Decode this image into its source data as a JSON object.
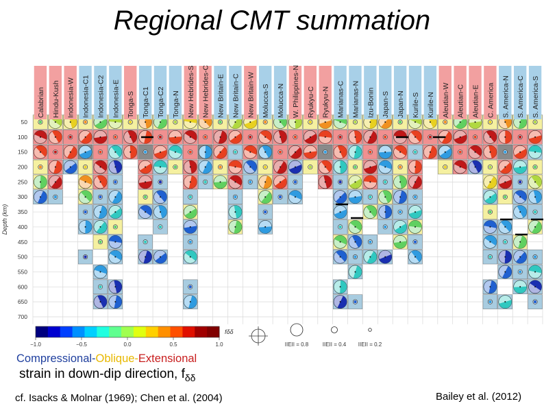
{
  "title": "Regional CMT summation",
  "chart_data": {
    "type": "table",
    "regions": [
      {
        "name": "Calabrian",
        "color": "#f2a0a0"
      },
      {
        "name": "Hindu-Kush",
        "color": "#f2a0a0"
      },
      {
        "name": "Indonesia-W",
        "color": "#f2a0a0"
      },
      {
        "name": "Indonesia-C1",
        "color": "#a8d0e8"
      },
      {
        "name": "Indonesia-C2",
        "color": "#a8d0e8"
      },
      {
        "name": "Indonesia-E",
        "color": "#a8d0e8"
      },
      {
        "name": "Tonga-S",
        "color": "#f2a0a0"
      },
      {
        "name": "Tonga-C1",
        "color": "#a8d0e8"
      },
      {
        "name": "Tonga-C2",
        "color": "#a8d0e8"
      },
      {
        "name": "Tonga-N",
        "color": "#a8d0e8"
      },
      {
        "name": "New Hebrides-S",
        "color": "#f2a0a0"
      },
      {
        "name": "New Hebrides-C",
        "color": "#f2a0a0"
      },
      {
        "name": "New Britain-E",
        "color": "#a8d0e8"
      },
      {
        "name": "New Britain-C",
        "color": "#a8d0e8"
      },
      {
        "name": "New Britain-W",
        "color": "#f2a0a0"
      },
      {
        "name": "Molucca-S",
        "color": "#a8d0e8"
      },
      {
        "name": "Molucca-N",
        "color": "#a8d0e8"
      },
      {
        "name": "W. Philippines-N",
        "color": "#f2a0a0"
      },
      {
        "name": "Ryukyu-C",
        "color": "#f2a0a0"
      },
      {
        "name": "Ryukyu-N",
        "color": "#f2a0a0"
      },
      {
        "name": "Marianas-C",
        "color": "#a8d0e8"
      },
      {
        "name": "Marianas-N",
        "color": "#a8d0e8"
      },
      {
        "name": "Izu-Bonin",
        "color": "#a8d0e8"
      },
      {
        "name": "Japan-S",
        "color": "#a8d0e8"
      },
      {
        "name": "Japan-N",
        "color": "#a8d0e8"
      },
      {
        "name": "Kurile-S",
        "color": "#a8d0e8"
      },
      {
        "name": "Kurile-N",
        "color": "#a8d0e8"
      },
      {
        "name": "Aleutian-W",
        "color": "#f2a0a0"
      },
      {
        "name": "Aleutian-C",
        "color": "#f2a0a0"
      },
      {
        "name": "Aleutian-E",
        "color": "#f2a0a0"
      },
      {
        "name": "C. America",
        "color": "#f2a0a0"
      },
      {
        "name": "S. America-N",
        "color": "#a8d0e8"
      },
      {
        "name": "S. America-C",
        "color": "#a8d0e8"
      },
      {
        "name": "S. America-S",
        "color": "#a8d0e8"
      }
    ],
    "depth_ticks": [
      50,
      100,
      150,
      200,
      250,
      300,
      350,
      400,
      450,
      500,
      550,
      600,
      650,
      700
    ],
    "ylabel": "Depth (km)",
    "ylim": [
      50,
      700
    ],
    "cell_colors": {
      "extensional": "#f09090",
      "oblique": "#f5f0a0",
      "compressional": "#a8cce0",
      "gray": "#8a8a8a"
    },
    "colorbar": {
      "label": "fδδ",
      "min": -1.0,
      "max": 1.0,
      "ticks": [
        "−1.0",
        "−0.5",
        "0.0",
        "0.5",
        "1.0"
      ],
      "colors": [
        "#00007f",
        "#0000d0",
        "#0040ff",
        "#0090ff",
        "#00d0ff",
        "#20ffe0",
        "#60ff90",
        "#a0ff50",
        "#e0ff10",
        "#ffd000",
        "#ff9000",
        "#ff5000",
        "#e01000",
        "#a00000",
        "#800000"
      ]
    },
    "magnitude_scale": [
      {
        "label": "IIEII = 0.8",
        "value": 0.8
      },
      {
        "label": "IIEII = 0.4",
        "value": 0.4
      },
      {
        "label": "IIEII = 0.2",
        "value": 0.2
      }
    ]
  },
  "legend": {
    "compressional": "Compressional",
    "sep1": "-",
    "oblique": "Oblique",
    "sep2": "-",
    "extensional": "Extensional",
    "strain_text": "strain in down-dip direction, f",
    "strain_symbol": "δδ"
  },
  "references": {
    "left": "cf. Isacks & Molnar (1969); Chen et al. (2004)",
    "right": "Bailey et al. (2012)"
  }
}
